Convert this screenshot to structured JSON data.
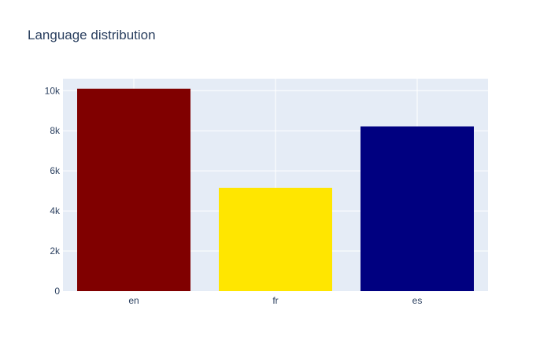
{
  "chart_data": {
    "type": "bar",
    "title": "Language distribution",
    "xlabel": "",
    "ylabel": "",
    "categories": [
      "en",
      "fr",
      "es"
    ],
    "series": [
      {
        "values": [
          10100,
          5150,
          8220
        ],
        "colors": [
          "#800000",
          "#ffe600",
          "#000080"
        ]
      }
    ],
    "ylim": [
      0,
      10600
    ],
    "yticks": [
      {
        "value": 0,
        "label": "0"
      },
      {
        "value": 2000,
        "label": "2k"
      },
      {
        "value": 4000,
        "label": "4k"
      },
      {
        "value": 6000,
        "label": "6k"
      },
      {
        "value": 8000,
        "label": "8k"
      },
      {
        "value": 10000,
        "label": "10k"
      }
    ],
    "grid": true,
    "plot_background": "#e5ecf6",
    "text_color": "#2a3f5f"
  }
}
